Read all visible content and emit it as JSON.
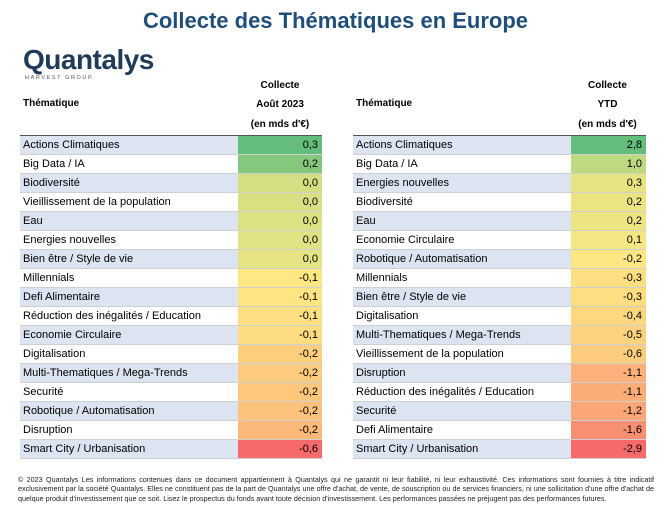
{
  "title": "Collecte des Thématiques en Europe",
  "logo": {
    "name": "Quantalys",
    "tagline": "HARVEST GROUP"
  },
  "colors": {
    "title": "#1f4e79",
    "row_alt": "#dce3f1"
  },
  "chart_data": [
    {
      "type": "table",
      "col_theme": "Thématique",
      "col_value_lines": [
        "Collecte",
        "Août 2023",
        "(en mds d'€)"
      ],
      "rows": [
        {
          "label": "Actions Climatiques",
          "display": "0,3",
          "value": 0.3,
          "color": "#63be7b"
        },
        {
          "label": "Big Data / IA",
          "display": "0,2",
          "value": 0.2,
          "color": "#85c87d"
        },
        {
          "label": "Biodiversité",
          "display": "0,0",
          "value": 0.0,
          "color": "#d3df82"
        },
        {
          "label": "Vieillissement de la population",
          "display": "0,0",
          "value": 0.0,
          "color": "#d8e082"
        },
        {
          "label": "Eau",
          "display": "0,0",
          "value": 0.0,
          "color": "#dce182"
        },
        {
          "label": "Energies nouvelles",
          "display": "0,0",
          "value": 0.0,
          "color": "#e0e283"
        },
        {
          "label": "Bien être / Style de vie",
          "display": "0,0",
          "value": 0.0,
          "color": "#e5e383"
        },
        {
          "label": "Millennials",
          "display": "-0,1",
          "value": -0.1,
          "color": "#fee883"
        },
        {
          "label": "Defi Alimentaire",
          "display": "-0,1",
          "value": -0.1,
          "color": "#fee482"
        },
        {
          "label": "Réduction des inégalités / Education",
          "display": "-0,1",
          "value": -0.1,
          "color": "#fee082"
        },
        {
          "label": "Economie Circulaire",
          "display": "-0,1",
          "value": -0.1,
          "color": "#fedc81"
        },
        {
          "label": "Digitalisation",
          "display": "-0,2",
          "value": -0.2,
          "color": "#fdcf7e"
        },
        {
          "label": "Multi-Thematiques / Mega-Trends",
          "display": "-0,2",
          "value": -0.2,
          "color": "#fdcb7d"
        },
        {
          "label": "Securité",
          "display": "-0,2",
          "value": -0.2,
          "color": "#fdc77c"
        },
        {
          "label": "Robotique / Automatisation",
          "display": "-0,2",
          "value": -0.2,
          "color": "#fcc27b"
        },
        {
          "label": "Disruption",
          "display": "-0,2",
          "value": -0.2,
          "color": "#fcb879"
        },
        {
          "label": "Smart City / Urbanisation",
          "display": "-0,6",
          "value": -0.6,
          "color": "#f8696b"
        }
      ]
    },
    {
      "type": "table",
      "col_theme": "Thématique",
      "col_value_lines": [
        "Collecte",
        "YTD",
        "(en mds d'€)"
      ],
      "rows": [
        {
          "label": "Actions Climatiques",
          "display": "2,8",
          "value": 2.8,
          "color": "#63be7b"
        },
        {
          "label": "Big Data / IA",
          "display": "1,0",
          "value": 1.0,
          "color": "#bfd981"
        },
        {
          "label": "Energies nouvelles",
          "display": "0,3",
          "value": 0.3,
          "color": "#e6e383"
        },
        {
          "label": "Biodiversité",
          "display": "0,2",
          "value": 0.2,
          "color": "#ebe483"
        },
        {
          "label": "Eau",
          "display": "0,2",
          "value": 0.2,
          "color": "#ede583"
        },
        {
          "label": "Economie Circulaire",
          "display": "0,1",
          "value": 0.1,
          "color": "#f3e783"
        },
        {
          "label": "Robotique / Automatisation",
          "display": "-0,2",
          "value": -0.2,
          "color": "#fee683"
        },
        {
          "label": "Millennials",
          "display": "-0,3",
          "value": -0.3,
          "color": "#fee082"
        },
        {
          "label": "Bien être / Style de vie",
          "display": "-0,3",
          "value": -0.3,
          "color": "#fede81"
        },
        {
          "label": "Digitalisation",
          "display": "-0,4",
          "value": -0.4,
          "color": "#fed880"
        },
        {
          "label": "Multi-Thematiques / Mega-Trends",
          "display": "-0,5",
          "value": -0.5,
          "color": "#fdd27f"
        },
        {
          "label": "Vieillissement de la population",
          "display": "-0,6",
          "value": -0.6,
          "color": "#fdcc7e"
        },
        {
          "label": "Disruption",
          "display": "-1,1",
          "value": -1.1,
          "color": "#fbb179"
        },
        {
          "label": "Réduction des inégalités / Education",
          "display": "-1,1",
          "value": -1.1,
          "color": "#fbad78"
        },
        {
          "label": "Securité",
          "display": "-1,2",
          "value": -1.2,
          "color": "#faa676"
        },
        {
          "label": "Defi Alimentaire",
          "display": "-1,6",
          "value": -1.6,
          "color": "#f98f72"
        },
        {
          "label": "Smart City / Urbanisation",
          "display": "-2,9",
          "value": -2.9,
          "color": "#f8696b"
        }
      ]
    }
  ],
  "footer": "© 2023 Quantalys Les informations contenues dans ce document appartiennent à Quantalys qui ne garantit ni leur fiabilité, ni leur exhaustivité. Ces informations sont fournies à titre indicatif exclusivement par la société Quantalys. Elles ne constituent pas de la part de Quantalys une offre d'achat, de vente, de souscription ou de services financiers, ni une sollicitation d'une offre d'achat de quelque produit d'investissement que ce soit. Lisez le prospectus du fonds avant toute décision d'investissement. Les performances passées ne préjugent pas des performances futures."
}
